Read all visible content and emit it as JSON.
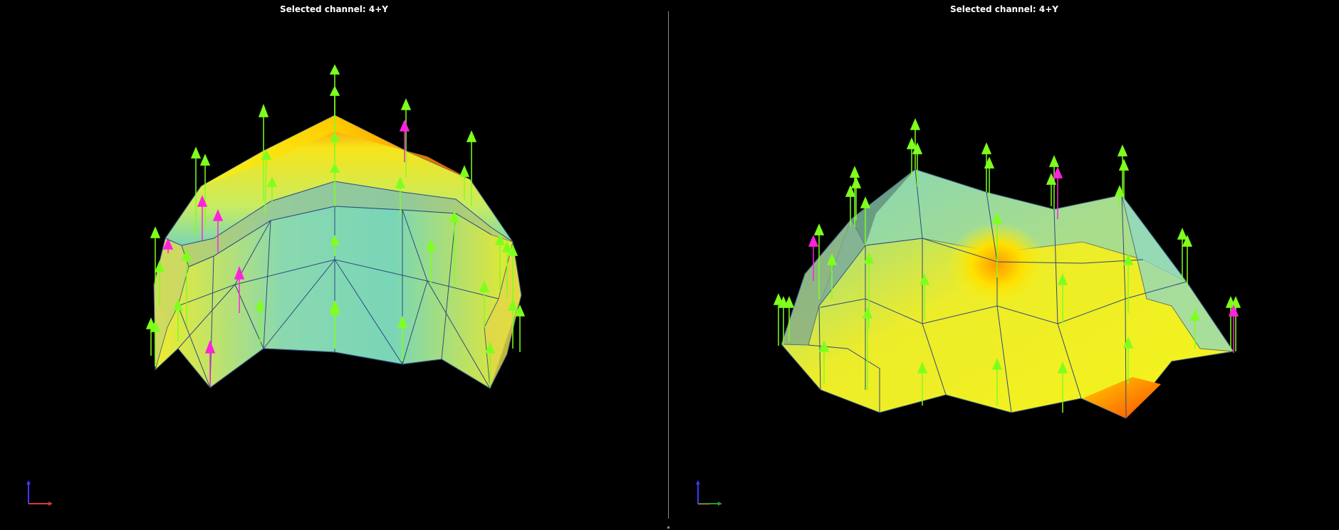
{
  "viewports": {
    "left": {
      "title": "Selected channel: 4+Y"
    },
    "right": {
      "title": "Selected channel: 4+Y"
    }
  },
  "colors": {
    "background": "#000000",
    "arrow_primary": "#7fff1e",
    "arrow_selected": "#ff22dd",
    "mesh_low": "#6fd7be",
    "mesh_mid": "#f2f21a",
    "mesh_high": "#ff5a00",
    "axis_x": "#d23a3a",
    "axis_y": "#2e9a2e",
    "axis_z": "#3a3aff"
  },
  "icons": [
    "axis-triad-icon"
  ]
}
